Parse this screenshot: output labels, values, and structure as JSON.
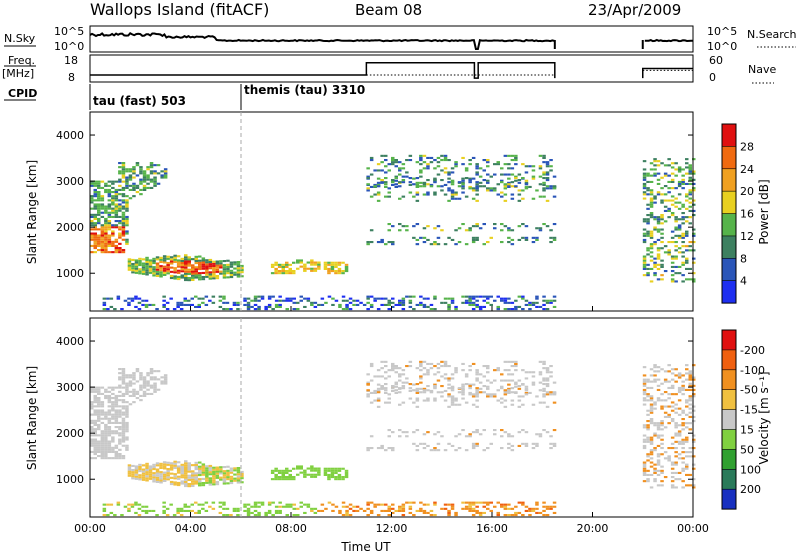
{
  "header": {
    "station": "Wallops Island (fitACF)",
    "beam": "Beam 08",
    "date": "23/Apr/2009"
  },
  "status_panels": {
    "nsky_label": "N.Sky",
    "nsky_ticks": [
      "10^5",
      "10^0"
    ],
    "nsearch_label": "N.Search",
    "nsearch_ticks": [
      "10^5",
      "10^0"
    ],
    "freq_label": "Freq.",
    "freq_unit": "[MHz]",
    "freq_ticks": [
      "18",
      "8"
    ],
    "nave_label": "Nave",
    "nave_ticks": [
      "60",
      "0"
    ],
    "cpid_label": "CPID",
    "cpid_segments": [
      {
        "label": "tau (fast) 503",
        "start_hour": 0
      },
      {
        "label": "themis (tau) 3310",
        "start_hour": 6
      }
    ],
    "data_gap_hours": [
      18.5,
      22.0
    ]
  },
  "chart_data": [
    {
      "type": "heatmap",
      "name": "power",
      "ylabel": "Slant Range [km]",
      "xlabel": "",
      "xlim_hours": [
        0,
        24
      ],
      "ylim_km": [
        180,
        4500
      ],
      "y_ticks": [
        "1000",
        "2000",
        "3000",
        "4000"
      ],
      "colorbar": {
        "label": "Power [dB]",
        "ticks": [
          "4",
          "8",
          "12",
          "16",
          "20",
          "24",
          "28"
        ],
        "colors": [
          "#1e2ff0",
          "#2a55b8",
          "#3d8060",
          "#56b34a",
          "#e8d020",
          "#f0a020",
          "#f06a10",
          "#e01010"
        ],
        "range": [
          0,
          30
        ]
      },
      "features": [
        {
          "desc_id": "near_range_clutter",
          "hours": [
            0,
            18.5
          ],
          "range_km": [
            200,
            500
          ]
        },
        {
          "desc_id": "early_arc",
          "hours": [
            0,
            3
          ],
          "range_km": [
            1300,
            3700
          ]
        },
        {
          "desc_id": "main_echo",
          "hours": [
            1.5,
            6
          ],
          "range_km": [
            800,
            1500
          ]
        },
        {
          "desc_id": "late_patches",
          "hours": [
            11,
            18.5
          ],
          "range_km": [
            1400,
            3800
          ]
        },
        {
          "desc_id": "post_gap",
          "hours": [
            22.0,
            24
          ],
          "range_km": [
            800,
            3500
          ]
        }
      ]
    },
    {
      "type": "heatmap",
      "name": "velocity",
      "ylabel": "Slant Range [km]",
      "xlabel": "Time UT",
      "xlim_hours": [
        0,
        24
      ],
      "ylim_km": [
        180,
        4500
      ],
      "x_ticks": [
        "00:00",
        "04:00",
        "08:00",
        "12:00",
        "16:00",
        "20:00",
        "00:00"
      ],
      "y_ticks": [
        "1000",
        "2000",
        "3000",
        "4000"
      ],
      "colorbar": {
        "label": "Velocity [m s⁻¹]",
        "ticks": [
          "200",
          "100",
          "50",
          "15",
          "-15",
          "-50",
          "-100",
          "-200"
        ],
        "colors": [
          "#1830c0",
          "#2a7a5a",
          "#30a030",
          "#80d040",
          "#c8c8c8",
          "#f0c040",
          "#f09020",
          "#f06010",
          "#e01010"
        ]
      }
    }
  ]
}
